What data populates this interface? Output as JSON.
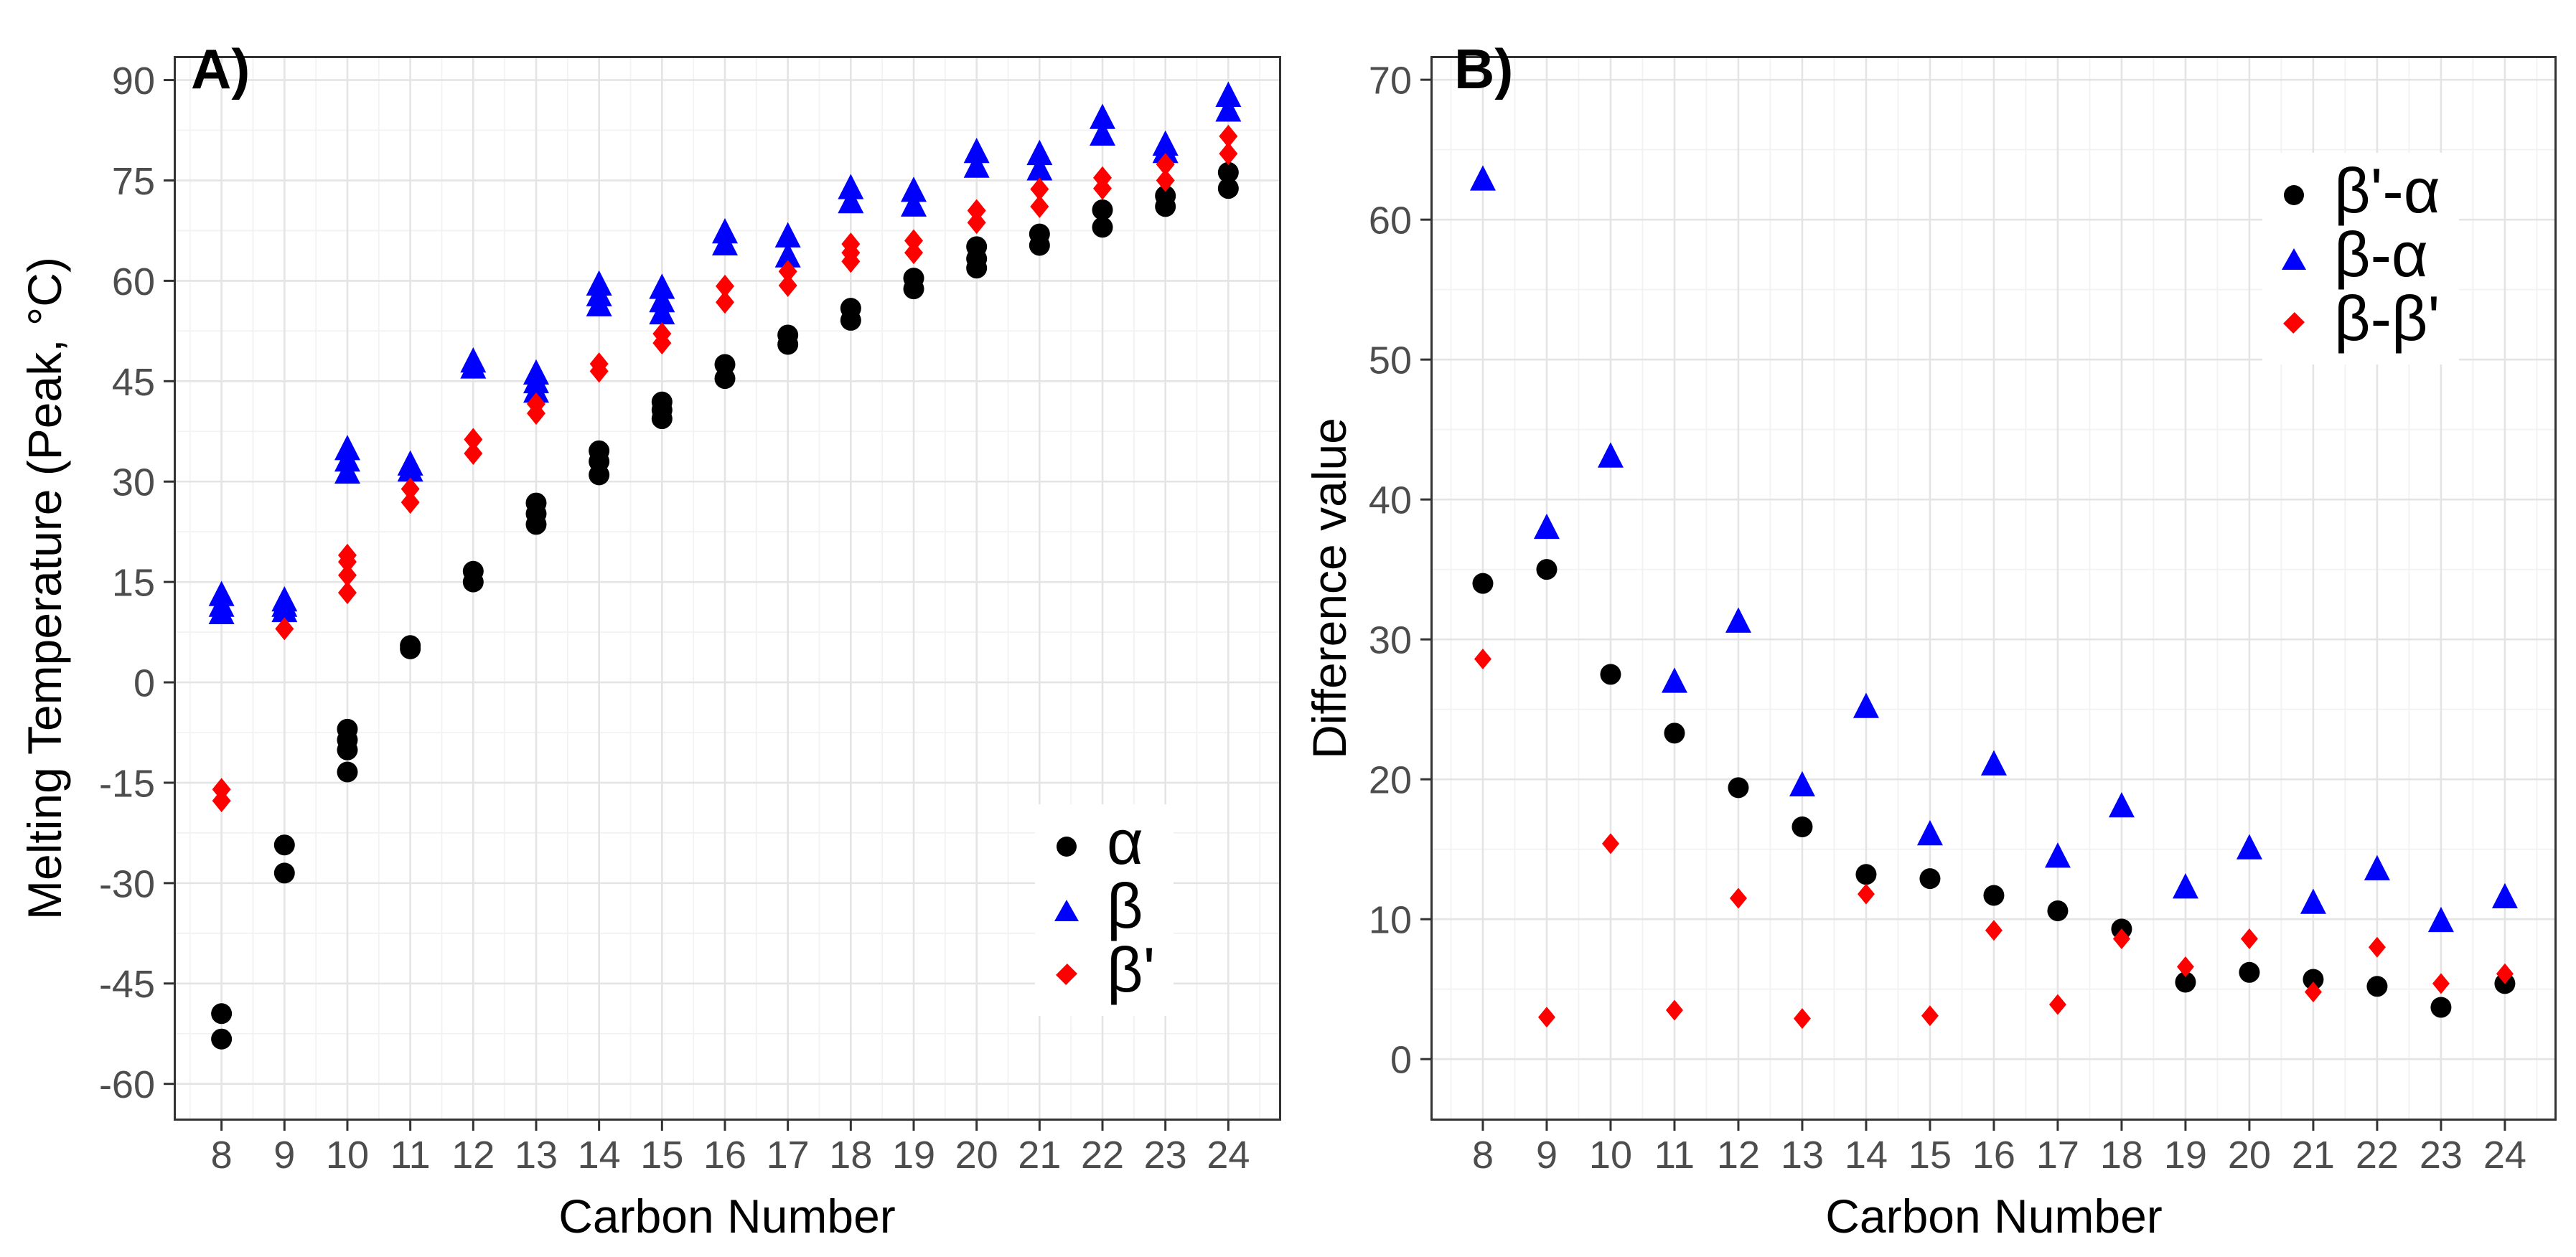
{
  "figure": {
    "background": "#FFFFFF",
    "tick_label_color": "#4D4D4D",
    "axis_color": "#333333",
    "grid_major_color": "#E4E4E4",
    "grid_minor_color": "#F2F2F2"
  },
  "chart_data": [
    {
      "type": "scatter",
      "tag": "A)",
      "xlabel": "Carbon Number",
      "ylabel": "Melting Temperature (Peak, °C)",
      "xlim": [
        7.24,
        24.84
      ],
      "ylim": [
        -65.5,
        93.6
      ],
      "xticks": [
        8,
        9,
        10,
        11,
        12,
        13,
        14,
        15,
        16,
        17,
        18,
        19,
        20,
        21,
        22,
        23,
        24
      ],
      "xticks_minor": [
        7.5,
        8.5,
        9.5,
        10.5,
        11.5,
        12.5,
        13.5,
        14.5,
        15.5,
        16.5,
        17.5,
        18.5,
        19.5,
        20.5,
        21.5,
        22.5,
        23.5,
        24.5
      ],
      "yticks": [
        -60,
        -45,
        -30,
        -15,
        0,
        15,
        30,
        45,
        60,
        75,
        90
      ],
      "yticks_minor": [
        -52.5,
        -37.5,
        -22.5,
        -7.5,
        7.5,
        22.5,
        37.5,
        52.5,
        67.5,
        82.5
      ],
      "grid": true,
      "legend_position": "inside-bottom-right",
      "legend": [
        {
          "label": "α",
          "marker": "circle",
          "color": "#000000"
        },
        {
          "label": "β",
          "marker": "triangle",
          "color": "#0000FF"
        },
        {
          "label": "β'",
          "marker": "diamond",
          "color": "#FF0000"
        }
      ],
      "series": [
        {
          "id": "alpha",
          "name": "α",
          "marker": "circle",
          "color": "#000000",
          "points": [
            [
              8,
              -49.5
            ],
            [
              8,
              -53.3
            ],
            [
              9,
              -24.3
            ],
            [
              9,
              -28.5
            ],
            [
              10,
              -7.0
            ],
            [
              10,
              -8.6
            ],
            [
              10,
              -10.1
            ],
            [
              10,
              -13.4
            ],
            [
              11,
              5.0
            ],
            [
              11,
              5.5
            ],
            [
              12,
              15.0
            ],
            [
              12,
              16.6
            ],
            [
              13,
              23.6
            ],
            [
              13,
              25.2
            ],
            [
              13,
              26.8
            ],
            [
              14,
              31.0
            ],
            [
              14,
              33.0
            ],
            [
              14,
              34.6
            ],
            [
              15,
              39.4
            ],
            [
              15,
              40.7
            ],
            [
              15,
              41.9
            ],
            [
              16,
              45.4
            ],
            [
              16,
              47.5
            ],
            [
              17,
              50.5
            ],
            [
              17,
              51.9
            ],
            [
              18,
              54.1
            ],
            [
              18,
              55.9
            ],
            [
              19,
              58.8
            ],
            [
              19,
              60.4
            ],
            [
              20,
              61.9
            ],
            [
              20,
              63.3
            ],
            [
              20,
              65.1
            ],
            [
              21,
              65.3
            ],
            [
              21,
              67.0
            ],
            [
              22,
              68.0
            ],
            [
              22,
              70.6
            ],
            [
              23,
              71.1
            ],
            [
              23,
              72.7
            ],
            [
              24,
              73.8
            ],
            [
              24,
              76.2
            ]
          ]
        },
        {
          "id": "beta",
          "name": "β",
          "marker": "triangle",
          "color": "#0000FF",
          "points": [
            [
              8,
              10.2
            ],
            [
              8,
              11.3
            ],
            [
              8,
              12.9
            ],
            [
              9,
              10.5
            ],
            [
              9,
              11.3
            ],
            [
              9,
              12.1
            ],
            [
              10,
              31.2
            ],
            [
              10,
              33.0
            ],
            [
              10,
              34.7
            ],
            [
              11,
              31.5
            ],
            [
              11,
              32.4
            ],
            [
              12,
              46.9
            ],
            [
              12,
              47.8
            ],
            [
              13,
              43.3
            ],
            [
              13,
              44.7
            ],
            [
              13,
              46.0
            ],
            [
              14,
              56.2
            ],
            [
              14,
              57.7
            ],
            [
              14,
              59.3
            ],
            [
              15,
              55.0
            ],
            [
              15,
              56.8
            ],
            [
              15,
              58.8
            ],
            [
              16,
              65.3
            ],
            [
              16,
              67.1
            ],
            [
              17,
              63.5
            ],
            [
              17,
              66.5
            ],
            [
              18,
              71.6
            ],
            [
              18,
              73.7
            ],
            [
              19,
              71.1
            ],
            [
              19,
              73.3
            ],
            [
              20,
              76.9
            ],
            [
              20,
              79.1
            ],
            [
              21,
              76.5
            ],
            [
              21,
              78.8
            ],
            [
              22,
              81.7
            ],
            [
              22,
              84.2
            ],
            [
              23,
              79.1
            ],
            [
              23,
              80.2
            ],
            [
              24,
              85.3
            ],
            [
              24,
              87.5
            ]
          ]
        },
        {
          "id": "beta-prime",
          "name": "β'",
          "marker": "diamond",
          "color": "#FF0000",
          "points": [
            [
              8,
              -16.0
            ],
            [
              8,
              -17.7
            ],
            [
              9,
              8.0
            ],
            [
              10,
              13.4
            ],
            [
              10,
              16.0
            ],
            [
              10,
              18.0
            ],
            [
              10,
              19.0
            ],
            [
              11,
              26.9
            ],
            [
              11,
              28.9
            ],
            [
              12,
              34.2
            ],
            [
              12,
              36.3
            ],
            [
              13,
              40.2
            ],
            [
              13,
              41.6
            ],
            [
              14,
              46.5
            ],
            [
              14,
              47.6
            ],
            [
              15,
              50.7
            ],
            [
              15,
              52.1
            ],
            [
              16,
              56.8
            ],
            [
              16,
              59.2
            ],
            [
              17,
              59.3
            ],
            [
              17,
              61.4
            ],
            [
              18,
              62.9
            ],
            [
              18,
              64.2
            ],
            [
              18,
              65.5
            ],
            [
              19,
              64.2
            ],
            [
              19,
              66.0
            ],
            [
              20,
              68.7
            ],
            [
              20,
              70.5
            ],
            [
              21,
              71.1
            ],
            [
              21,
              73.7
            ],
            [
              22,
              73.8
            ],
            [
              22,
              75.4
            ],
            [
              23,
              75.0
            ],
            [
              23,
              77.4
            ],
            [
              24,
              79.0
            ],
            [
              24,
              81.6
            ]
          ]
        }
      ]
    },
    {
      "type": "scatter",
      "tag": "B)",
      "xlabel": "Carbon Number",
      "ylabel": "Difference value",
      "xlim": [
        7.18,
        24.81
      ],
      "ylim": [
        -4.4,
        71.7
      ],
      "xticks": [
        8,
        9,
        10,
        11,
        12,
        13,
        14,
        15,
        16,
        17,
        18,
        19,
        20,
        21,
        22,
        23,
        24
      ],
      "xticks_minor": [
        7.5,
        8.5,
        9.5,
        10.5,
        11.5,
        12.5,
        13.5,
        14.5,
        15.5,
        16.5,
        17.5,
        18.5,
        19.5,
        20.5,
        21.5,
        22.5,
        23.5,
        24.5
      ],
      "yticks": [
        0,
        10,
        20,
        30,
        40,
        50,
        60,
        70
      ],
      "yticks_minor": [
        5,
        15,
        25,
        35,
        45,
        55,
        65
      ],
      "grid": true,
      "legend_position": "inside-top-right",
      "legend": [
        {
          "label": "β'-α",
          "marker": "circle",
          "color": "#000000"
        },
        {
          "label": "β-α",
          "marker": "triangle",
          "color": "#0000FF"
        },
        {
          "label": "β-β'",
          "marker": "diamond",
          "color": "#FF0000"
        }
      ],
      "series": [
        {
          "id": "beta-prime-minus-alpha",
          "name": "β'-α",
          "marker": "circle",
          "color": "#000000",
          "points": [
            [
              8,
              34.0
            ],
            [
              9,
              35.0
            ],
            [
              10,
              27.5
            ],
            [
              11,
              23.3
            ],
            [
              12,
              19.4
            ],
            [
              13,
              16.6
            ],
            [
              14,
              13.2
            ],
            [
              15,
              12.9
            ],
            [
              16,
              11.7
            ],
            [
              17,
              10.6
            ],
            [
              18,
              9.3
            ],
            [
              19,
              5.5
            ],
            [
              20,
              6.2
            ],
            [
              21,
              5.7
            ],
            [
              22,
              5.2
            ],
            [
              23,
              3.7
            ],
            [
              24,
              5.4
            ]
          ]
        },
        {
          "id": "beta-minus-alpha",
          "name": "β-α",
          "marker": "triangle",
          "color": "#0000FF",
          "points": [
            [
              8,
              62.8
            ],
            [
              9,
              37.9
            ],
            [
              10,
              43.0
            ],
            [
              11,
              26.9
            ],
            [
              12,
              31.2
            ],
            [
              13,
              19.5
            ],
            [
              14,
              25.1
            ],
            [
              15,
              16.0
            ],
            [
              16,
              21.0
            ],
            [
              17,
              14.4
            ],
            [
              18,
              18.0
            ],
            [
              19,
              12.2
            ],
            [
              20,
              15.0
            ],
            [
              21,
              11.1
            ],
            [
              22,
              13.5
            ],
            [
              23,
              9.8
            ],
            [
              24,
              11.5
            ]
          ]
        },
        {
          "id": "beta-minus-beta-prime",
          "name": "β-β'",
          "marker": "diamond",
          "color": "#FF0000",
          "points": [
            [
              8,
              28.6
            ],
            [
              9,
              3.0
            ],
            [
              10,
              15.4
            ],
            [
              11,
              3.5
            ],
            [
              12,
              11.5
            ],
            [
              13,
              2.9
            ],
            [
              14,
              11.8
            ],
            [
              15,
              3.1
            ],
            [
              16,
              9.2
            ],
            [
              17,
              3.9
            ],
            [
              18,
              8.6
            ],
            [
              19,
              6.6
            ],
            [
              20,
              8.6
            ],
            [
              21,
              4.8
            ],
            [
              22,
              8.0
            ],
            [
              23,
              5.4
            ],
            [
              24,
              6.1
            ]
          ]
        }
      ]
    }
  ]
}
